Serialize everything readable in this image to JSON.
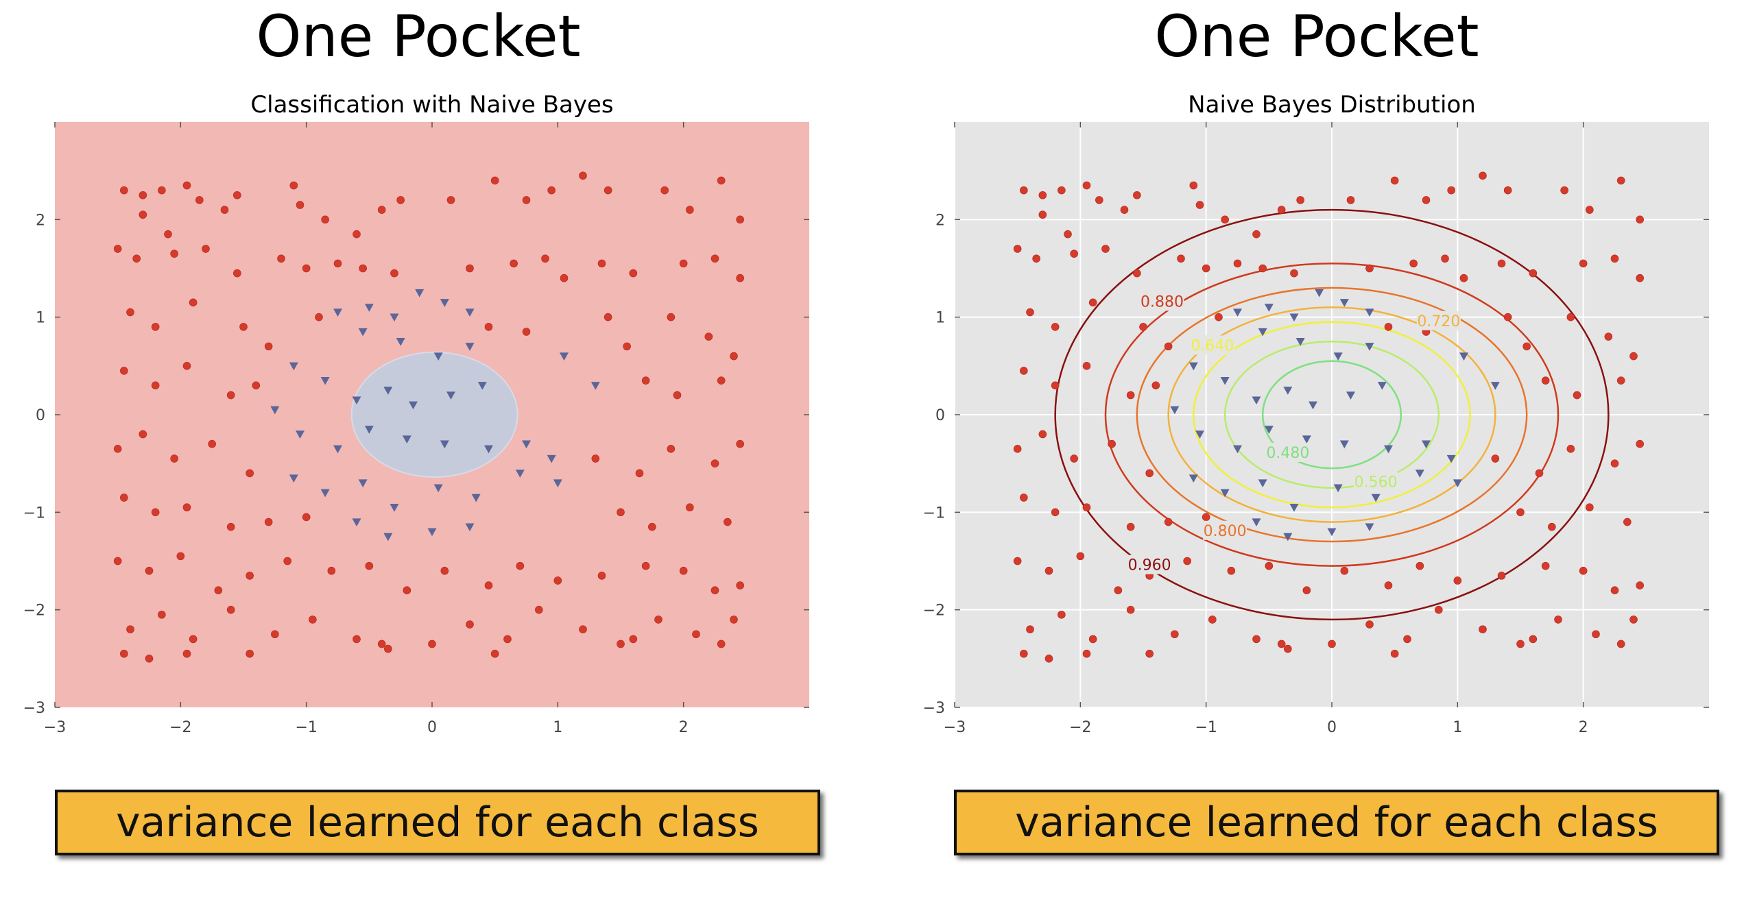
{
  "slide": {
    "left_heading": "One Pocket",
    "right_heading": "One Pocket",
    "left_banner": "variance learned for each class",
    "right_banner": "variance learned for each class"
  },
  "colors": {
    "red_points": "#d63a2a",
    "blue_points": "#5a6699",
    "region_red": "#f2b8b4",
    "region_blue": "#c6cbdc",
    "axes_gray": "#e5e5e5",
    "banner": "#f5b93d"
  },
  "chart_data": [
    {
      "type": "scatter",
      "title": "Classification with Naive Bayes",
      "xlabel": "",
      "ylabel": "",
      "xlim": [
        -3,
        3
      ],
      "ylim": [
        -3,
        3
      ],
      "xticks": [
        -3,
        -2,
        -1,
        0,
        1,
        2
      ],
      "yticks": [
        -3,
        -2,
        -1,
        0,
        1,
        2
      ],
      "xtick_labels": [
        "−3",
        "−2",
        "−1",
        "0",
        "1",
        "2"
      ],
      "ytick_labels": [
        "−3",
        "−2",
        "−1",
        "0",
        "1",
        "2"
      ],
      "background": "decision regions",
      "decision_region": {
        "shape": "ellipse",
        "cx": 0.02,
        "cy": 0.0,
        "rx": 0.66,
        "ry": 0.64
      },
      "grid": false,
      "series_note": "red circles outside pocket, blue triangles inside pocket",
      "series": [
        {
          "name": "",
          "marker": "circle",
          "color": "#d63a2a",
          "points": [
            [
              -2.45,
              2.3
            ],
            [
              -2.3,
              2.25
            ],
            [
              -2.15,
              2.3
            ],
            [
              -1.95,
              2.35
            ],
            [
              -1.85,
              2.2
            ],
            [
              -2.3,
              2.05
            ],
            [
              -2.1,
              1.85
            ],
            [
              -1.65,
              2.1
            ],
            [
              -1.55,
              2.25
            ],
            [
              -1.1,
              2.35
            ],
            [
              -1.05,
              2.15
            ],
            [
              -0.85,
              2.0
            ],
            [
              -0.6,
              1.85
            ],
            [
              -0.4,
              2.1
            ],
            [
              -0.25,
              2.2
            ],
            [
              0.15,
              2.2
            ],
            [
              0.5,
              2.4
            ],
            [
              0.75,
              2.2
            ],
            [
              0.95,
              2.3
            ],
            [
              1.2,
              2.45
            ],
            [
              1.4,
              2.3
            ],
            [
              1.85,
              2.3
            ],
            [
              2.05,
              2.1
            ],
            [
              2.3,
              2.4
            ],
            [
              2.45,
              2.0
            ],
            [
              -2.5,
              1.7
            ],
            [
              -2.35,
              1.6
            ],
            [
              -2.05,
              1.65
            ],
            [
              -1.8,
              1.7
            ],
            [
              -1.55,
              1.45
            ],
            [
              -1.2,
              1.6
            ],
            [
              -1.0,
              1.5
            ],
            [
              -0.75,
              1.55
            ],
            [
              -0.55,
              1.5
            ],
            [
              -0.3,
              1.45
            ],
            [
              0.3,
              1.5
            ],
            [
              0.65,
              1.55
            ],
            [
              0.9,
              1.6
            ],
            [
              1.05,
              1.4
            ],
            [
              1.35,
              1.55
            ],
            [
              1.6,
              1.45
            ],
            [
              2.0,
              1.55
            ],
            [
              2.25,
              1.6
            ],
            [
              2.45,
              1.4
            ],
            [
              -2.4,
              1.05
            ],
            [
              -2.2,
              0.9
            ],
            [
              -1.9,
              1.15
            ],
            [
              -1.5,
              0.9
            ],
            [
              -1.3,
              0.7
            ],
            [
              -0.9,
              1.0
            ],
            [
              0.45,
              0.9
            ],
            [
              0.75,
              0.85
            ],
            [
              1.4,
              1.0
            ],
            [
              1.55,
              0.7
            ],
            [
              1.9,
              1.0
            ],
            [
              2.2,
              0.8
            ],
            [
              2.4,
              0.6
            ],
            [
              -2.45,
              0.45
            ],
            [
              -2.2,
              0.3
            ],
            [
              -1.95,
              0.5
            ],
            [
              -1.6,
              0.2
            ],
            [
              -1.4,
              0.3
            ],
            [
              1.7,
              0.35
            ],
            [
              1.95,
              0.2
            ],
            [
              2.3,
              0.35
            ],
            [
              -2.5,
              -0.35
            ],
            [
              -2.3,
              -0.2
            ],
            [
              -2.05,
              -0.45
            ],
            [
              -1.75,
              -0.3
            ],
            [
              -1.45,
              -0.6
            ],
            [
              1.3,
              -0.45
            ],
            [
              1.65,
              -0.6
            ],
            [
              1.9,
              -0.35
            ],
            [
              2.25,
              -0.5
            ],
            [
              2.45,
              -0.3
            ],
            [
              -2.45,
              -0.85
            ],
            [
              -2.2,
              -1.0
            ],
            [
              -1.95,
              -0.95
            ],
            [
              -1.6,
              -1.15
            ],
            [
              -1.3,
              -1.1
            ],
            [
              -1.0,
              -1.05
            ],
            [
              1.5,
              -1.0
            ],
            [
              1.75,
              -1.15
            ],
            [
              2.05,
              -0.95
            ],
            [
              2.35,
              -1.1
            ],
            [
              -2.5,
              -1.5
            ],
            [
              -2.25,
              -1.6
            ],
            [
              -2.0,
              -1.45
            ],
            [
              -1.7,
              -1.8
            ],
            [
              -1.45,
              -1.65
            ],
            [
              -1.15,
              -1.5
            ],
            [
              -0.8,
              -1.6
            ],
            [
              -0.5,
              -1.55
            ],
            [
              -0.2,
              -1.8
            ],
            [
              0.1,
              -1.6
            ],
            [
              0.45,
              -1.75
            ],
            [
              0.7,
              -1.55
            ],
            [
              1.0,
              -1.7
            ],
            [
              1.35,
              -1.65
            ],
            [
              1.7,
              -1.55
            ],
            [
              2.0,
              -1.6
            ],
            [
              2.25,
              -1.8
            ],
            [
              2.45,
              -1.75
            ],
            [
              -2.4,
              -2.2
            ],
            [
              -2.15,
              -2.05
            ],
            [
              -1.9,
              -2.3
            ],
            [
              -1.6,
              -2.0
            ],
            [
              -1.25,
              -2.25
            ],
            [
              -0.95,
              -2.1
            ],
            [
              -0.6,
              -2.3
            ],
            [
              -0.35,
              -2.4
            ],
            [
              0.0,
              -2.35
            ],
            [
              0.3,
              -2.15
            ],
            [
              0.6,
              -2.3
            ],
            [
              0.85,
              -2.0
            ],
            [
              1.2,
              -2.2
            ],
            [
              1.5,
              -2.35
            ],
            [
              1.8,
              -2.1
            ],
            [
              2.1,
              -2.25
            ],
            [
              2.4,
              -2.1
            ],
            [
              -2.45,
              -2.45
            ],
            [
              -2.25,
              -2.5
            ],
            [
              -1.95,
              -2.45
            ],
            [
              -1.45,
              -2.45
            ],
            [
              -0.4,
              -2.35
            ],
            [
              0.5,
              -2.45
            ],
            [
              1.6,
              -2.3
            ],
            [
              2.3,
              -2.35
            ]
          ]
        },
        {
          "name": "",
          "marker": "triangle-down",
          "color": "#5a6699",
          "points": [
            [
              -0.75,
              1.05
            ],
            [
              -0.5,
              1.1
            ],
            [
              -0.3,
              1.0
            ],
            [
              -0.1,
              1.25
            ],
            [
              0.1,
              1.15
            ],
            [
              0.3,
              1.05
            ],
            [
              -0.55,
              0.85
            ],
            [
              -0.25,
              0.75
            ],
            [
              0.05,
              0.6
            ],
            [
              0.3,
              0.7
            ],
            [
              -1.1,
              0.5
            ],
            [
              -0.85,
              0.35
            ],
            [
              -0.6,
              0.15
            ],
            [
              -0.35,
              0.25
            ],
            [
              -0.15,
              0.1
            ],
            [
              0.15,
              0.2
            ],
            [
              0.4,
              0.3
            ],
            [
              -1.25,
              0.05
            ],
            [
              -1.05,
              -0.2
            ],
            [
              -0.75,
              -0.35
            ],
            [
              -0.5,
              -0.15
            ],
            [
              -0.2,
              -0.25
            ],
            [
              0.1,
              -0.3
            ],
            [
              0.45,
              -0.35
            ],
            [
              0.75,
              -0.3
            ],
            [
              -1.1,
              -0.65
            ],
            [
              -0.85,
              -0.8
            ],
            [
              -0.55,
              -0.7
            ],
            [
              -0.3,
              -0.95
            ],
            [
              0.05,
              -0.75
            ],
            [
              0.35,
              -0.85
            ],
            [
              0.7,
              -0.6
            ],
            [
              1.0,
              -0.7
            ],
            [
              -0.6,
              -1.1
            ],
            [
              -0.35,
              -1.25
            ],
            [
              0.0,
              -1.2
            ],
            [
              0.3,
              -1.15
            ],
            [
              1.05,
              0.6
            ],
            [
              1.3,
              0.3
            ],
            [
              0.95,
              -0.45
            ]
          ]
        }
      ]
    },
    {
      "type": "scatter",
      "title": "Naive Bayes Distribution",
      "xlabel": "",
      "ylabel": "",
      "xlim": [
        -3,
        3
      ],
      "ylim": [
        -3,
        3
      ],
      "xticks": [
        -3,
        -2,
        -1,
        0,
        1,
        2
      ],
      "yticks": [
        -3,
        -2,
        -1,
        0,
        1,
        2
      ],
      "xtick_labels": [
        "−3",
        "−2",
        "−1",
        "0",
        "1",
        "2"
      ],
      "ytick_labels": [
        "−3",
        "−2",
        "−1",
        "0",
        "1",
        "2"
      ],
      "grid": true,
      "contours": [
        {
          "level": 0.48,
          "label": "0.480",
          "color": "#7fe07f",
          "rx": 0.55,
          "ry": 0.55,
          "label_x": -0.35,
          "label_y": -0.4
        },
        {
          "level": 0.56,
          "label": "0.560",
          "color": "#b9ec6a",
          "rx": 0.85,
          "ry": 0.75,
          "label_x": 0.35,
          "label_y": -0.7
        },
        {
          "level": 0.64,
          "label": "0.640",
          "color": "#f0f03a",
          "rx": 1.1,
          "ry": 0.95,
          "label_x": -0.95,
          "label_y": 0.7
        },
        {
          "level": 0.72,
          "label": "0.720",
          "color": "#f3b23a",
          "rx": 1.3,
          "ry": 1.1,
          "label_x": 0.85,
          "label_y": 0.95
        },
        {
          "level": 0.8,
          "label": "0.800",
          "color": "#e8742a",
          "rx": 1.55,
          "ry": 1.3,
          "label_x": -0.85,
          "label_y": -1.2
        },
        {
          "level": 0.88,
          "label": "0.880",
          "color": "#cf3a1e",
          "rx": 1.8,
          "ry": 1.55,
          "label_x": -1.35,
          "label_y": 1.15
        },
        {
          "level": 0.96,
          "label": "0.960",
          "color": "#8a1010",
          "rx": 2.2,
          "ry": 2.1,
          "label_x": -1.45,
          "label_y": -1.55
        }
      ],
      "series_ref": "same points as first chart"
    }
  ]
}
